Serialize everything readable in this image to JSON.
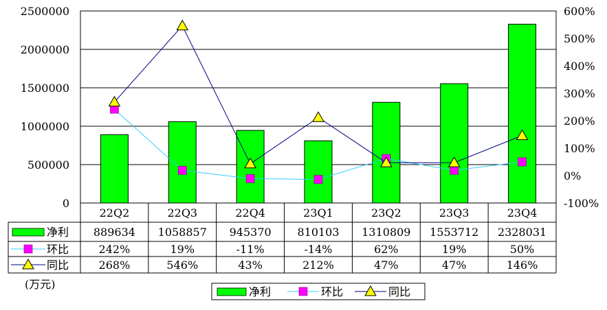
{
  "chart_data": {
    "type": "bar",
    "categories": [
      "22Q2",
      "22Q3",
      "22Q4",
      "23Q1",
      "23Q2",
      "23Q3",
      "23Q4"
    ],
    "left_axis": {
      "min": 0,
      "max": 2500000,
      "step": 500000,
      "ticks": [
        "0",
        "500000",
        "1000000",
        "1500000",
        "2000000",
        "2500000"
      ]
    },
    "right_axis": {
      "min": -100,
      "max": 600,
      "step": 100,
      "ticks": [
        "-100%",
        "0%",
        "100%",
        "200%",
        "300%",
        "400%",
        "500%",
        "600%"
      ]
    },
    "series": [
      {
        "name": "净利",
        "kind": "bar",
        "axis": "left",
        "color": "#00ff00",
        "values": [
          889634,
          1058857,
          945370,
          810103,
          1310809,
          1553712,
          2328031
        ],
        "labels": [
          "889634",
          "1058857",
          "945370",
          "810103",
          "1310809",
          "1553712",
          "2328031"
        ]
      },
      {
        "name": "环比",
        "kind": "line",
        "axis": "right",
        "color": "#33ccff",
        "marker": "square",
        "marker_color": "#ff00ff",
        "values": [
          242,
          19,
          -11,
          -14,
          62,
          19,
          50
        ],
        "labels": [
          "242%",
          "19%",
          "-11%",
          "-14%",
          "62%",
          "19%",
          "50%"
        ]
      },
      {
        "name": "同比",
        "kind": "line",
        "axis": "right",
        "color": "#000080",
        "marker": "triangle",
        "marker_color": "#ffff00",
        "values": [
          268,
          546,
          43,
          212,
          47,
          47,
          146
        ],
        "labels": [
          "268%",
          "546%",
          "43%",
          "212%",
          "47%",
          "47%",
          "146%"
        ]
      }
    ],
    "unit": "(万元)",
    "grid": true,
    "legend": "bottom-center"
  }
}
